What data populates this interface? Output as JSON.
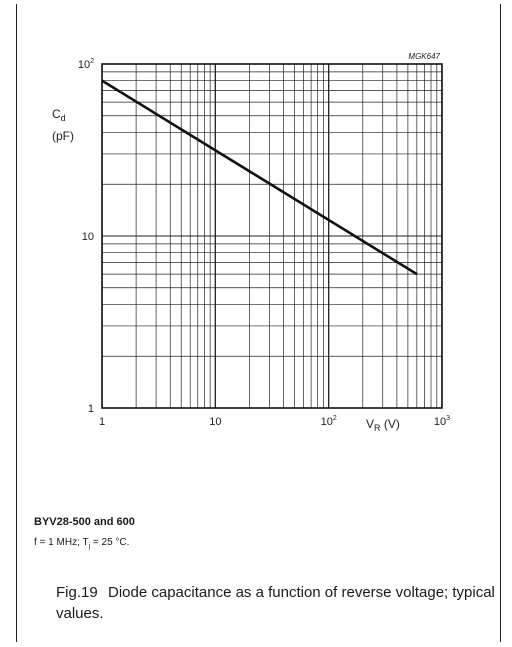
{
  "chart_data": {
    "type": "line",
    "figure_code": "MGK647",
    "x_scale": "log",
    "y_scale": "log",
    "xlim": [
      1,
      1000
    ],
    "ylim": [
      1,
      100
    ],
    "grid": true,
    "x_ticks": [
      {
        "value": 1,
        "base": "1",
        "sup": ""
      },
      {
        "value": 10,
        "base": "10",
        "sup": ""
      },
      {
        "value": 100,
        "base": "10",
        "sup": "2"
      },
      {
        "value": 1000,
        "base": "10",
        "sup": "3"
      }
    ],
    "y_ticks": [
      {
        "value": 1,
        "base": "1",
        "sup": ""
      },
      {
        "value": 10,
        "base": "10",
        "sup": ""
      },
      {
        "value": 100,
        "base": "10",
        "sup": "2"
      }
    ],
    "xlabel": {
      "main": "V",
      "sub": "R",
      "unit": " (V)"
    },
    "ylabel": {
      "main": "C",
      "sub": "d",
      "unit": "(pF)"
    },
    "series": [
      {
        "x": [
          1,
          600
        ],
        "y": [
          80,
          6
        ]
      }
    ]
  },
  "device": "BYV28-500 and 600",
  "conditions": {
    "pre": "f = 1 MHz; T",
    "sub": "j",
    "post": " = 25 °C."
  },
  "caption": {
    "number": "Fig.19",
    "text": "Diode capacitance as a function of reverse voltage; typical values."
  }
}
